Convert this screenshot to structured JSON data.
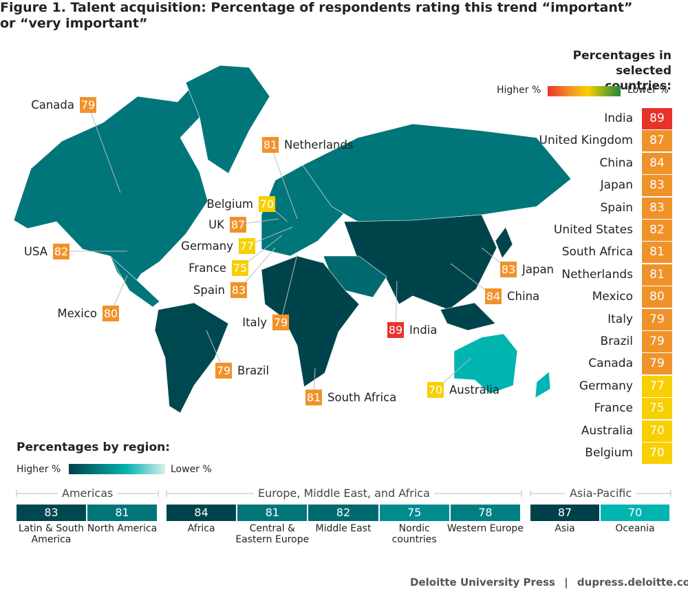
{
  "title": "Figure 1. Talent acquisition: Percentage of respondents rating this trend “important” or “very important”",
  "country_legend": {
    "title": "Percentages in selected countries:",
    "higher": "Higher %",
    "lower": "Lower %"
  },
  "map_labels": [
    {
      "label": "Canada",
      "value": 79,
      "color": "#f0922a"
    },
    {
      "label": "Netherlands",
      "value": 81,
      "color": "#f0922a"
    },
    {
      "label": "Belgium",
      "value": 70,
      "color": "#f8cf00"
    },
    {
      "label": "UK",
      "value": 87,
      "color": "#f0922a"
    },
    {
      "label": "Germany",
      "value": 77,
      "color": "#f8cf00"
    },
    {
      "label": "France",
      "value": 75,
      "color": "#f8cf00"
    },
    {
      "label": "Spain",
      "value": 83,
      "color": "#f0922a"
    },
    {
      "label": "Italy",
      "value": 79,
      "color": "#f0922a"
    },
    {
      "label": "USA",
      "value": 82,
      "color": "#f0922a"
    },
    {
      "label": "Mexico",
      "value": 80,
      "color": "#f0922a"
    },
    {
      "label": "Brazil",
      "value": 79,
      "color": "#f0922a"
    },
    {
      "label": "South Africa",
      "value": 81,
      "color": "#f0922a"
    },
    {
      "label": "India",
      "value": 89,
      "color": "#e8332a"
    },
    {
      "label": "Japan",
      "value": 83,
      "color": "#f0922a"
    },
    {
      "label": "China",
      "value": 84,
      "color": "#f0922a"
    },
    {
      "label": "Australia",
      "value": 70,
      "color": "#f8cf00"
    }
  ],
  "ranking": [
    {
      "name": "India",
      "value": 89,
      "color": "#e8332a"
    },
    {
      "name": "United Kingdom",
      "value": 87,
      "color": "#f0922a"
    },
    {
      "name": "China",
      "value": 84,
      "color": "#f0922a"
    },
    {
      "name": "Japan",
      "value": 83,
      "color": "#f0922a"
    },
    {
      "name": "Spain",
      "value": 83,
      "color": "#f0922a"
    },
    {
      "name": "United States",
      "value": 82,
      "color": "#f0922a"
    },
    {
      "name": "South Africa",
      "value": 81,
      "color": "#f0922a"
    },
    {
      "name": "Netherlands",
      "value": 81,
      "color": "#f0922a"
    },
    {
      "name": "Mexico",
      "value": 80,
      "color": "#f0922a"
    },
    {
      "name": "Italy",
      "value": 79,
      "color": "#f0922a"
    },
    {
      "name": "Brazil",
      "value": 79,
      "color": "#f0922a"
    },
    {
      "name": "Canada",
      "value": 79,
      "color": "#f0922a"
    },
    {
      "name": "Germany",
      "value": 77,
      "color": "#f8cf00"
    },
    {
      "name": "France",
      "value": 75,
      "color": "#f8cf00"
    },
    {
      "name": "Australia",
      "value": 70,
      "color": "#f8cf00"
    },
    {
      "name": "Belgium",
      "value": 70,
      "color": "#f8cf00"
    }
  ],
  "region_legend": {
    "title": "Percentages by region:",
    "higher": "Higher %",
    "lower": "Lower %"
  },
  "region_groups": [
    {
      "name": "Americas",
      "regions": [
        {
          "name": "Latin & South America",
          "value": 83,
          "color": "#00484f"
        },
        {
          "name": "North America",
          "value": 81,
          "color": "#00767a"
        }
      ]
    },
    {
      "name": "Europe, Middle East, and Africa",
      "regions": [
        {
          "name": "Africa",
          "value": 84,
          "color": "#00444b"
        },
        {
          "name": "Central & Eastern Europe",
          "value": 81,
          "color": "#00767a"
        },
        {
          "name": "Middle East",
          "value": 82,
          "color": "#006a70"
        },
        {
          "name": "Nordic countries",
          "value": 75,
          "color": "#008c8e"
        },
        {
          "name": "Western Europe",
          "value": 78,
          "color": "#007f83"
        }
      ]
    },
    {
      "name": "Asia-Pacific",
      "regions": [
        {
          "name": "Asia",
          "value": 87,
          "color": "#00404a"
        },
        {
          "name": "Oceania",
          "value": 70,
          "color": "#00b4b0"
        }
      ]
    }
  ],
  "footer": {
    "source": "Deloitte University Press",
    "separator": "|",
    "url": "dupress.deloitte.com"
  }
}
